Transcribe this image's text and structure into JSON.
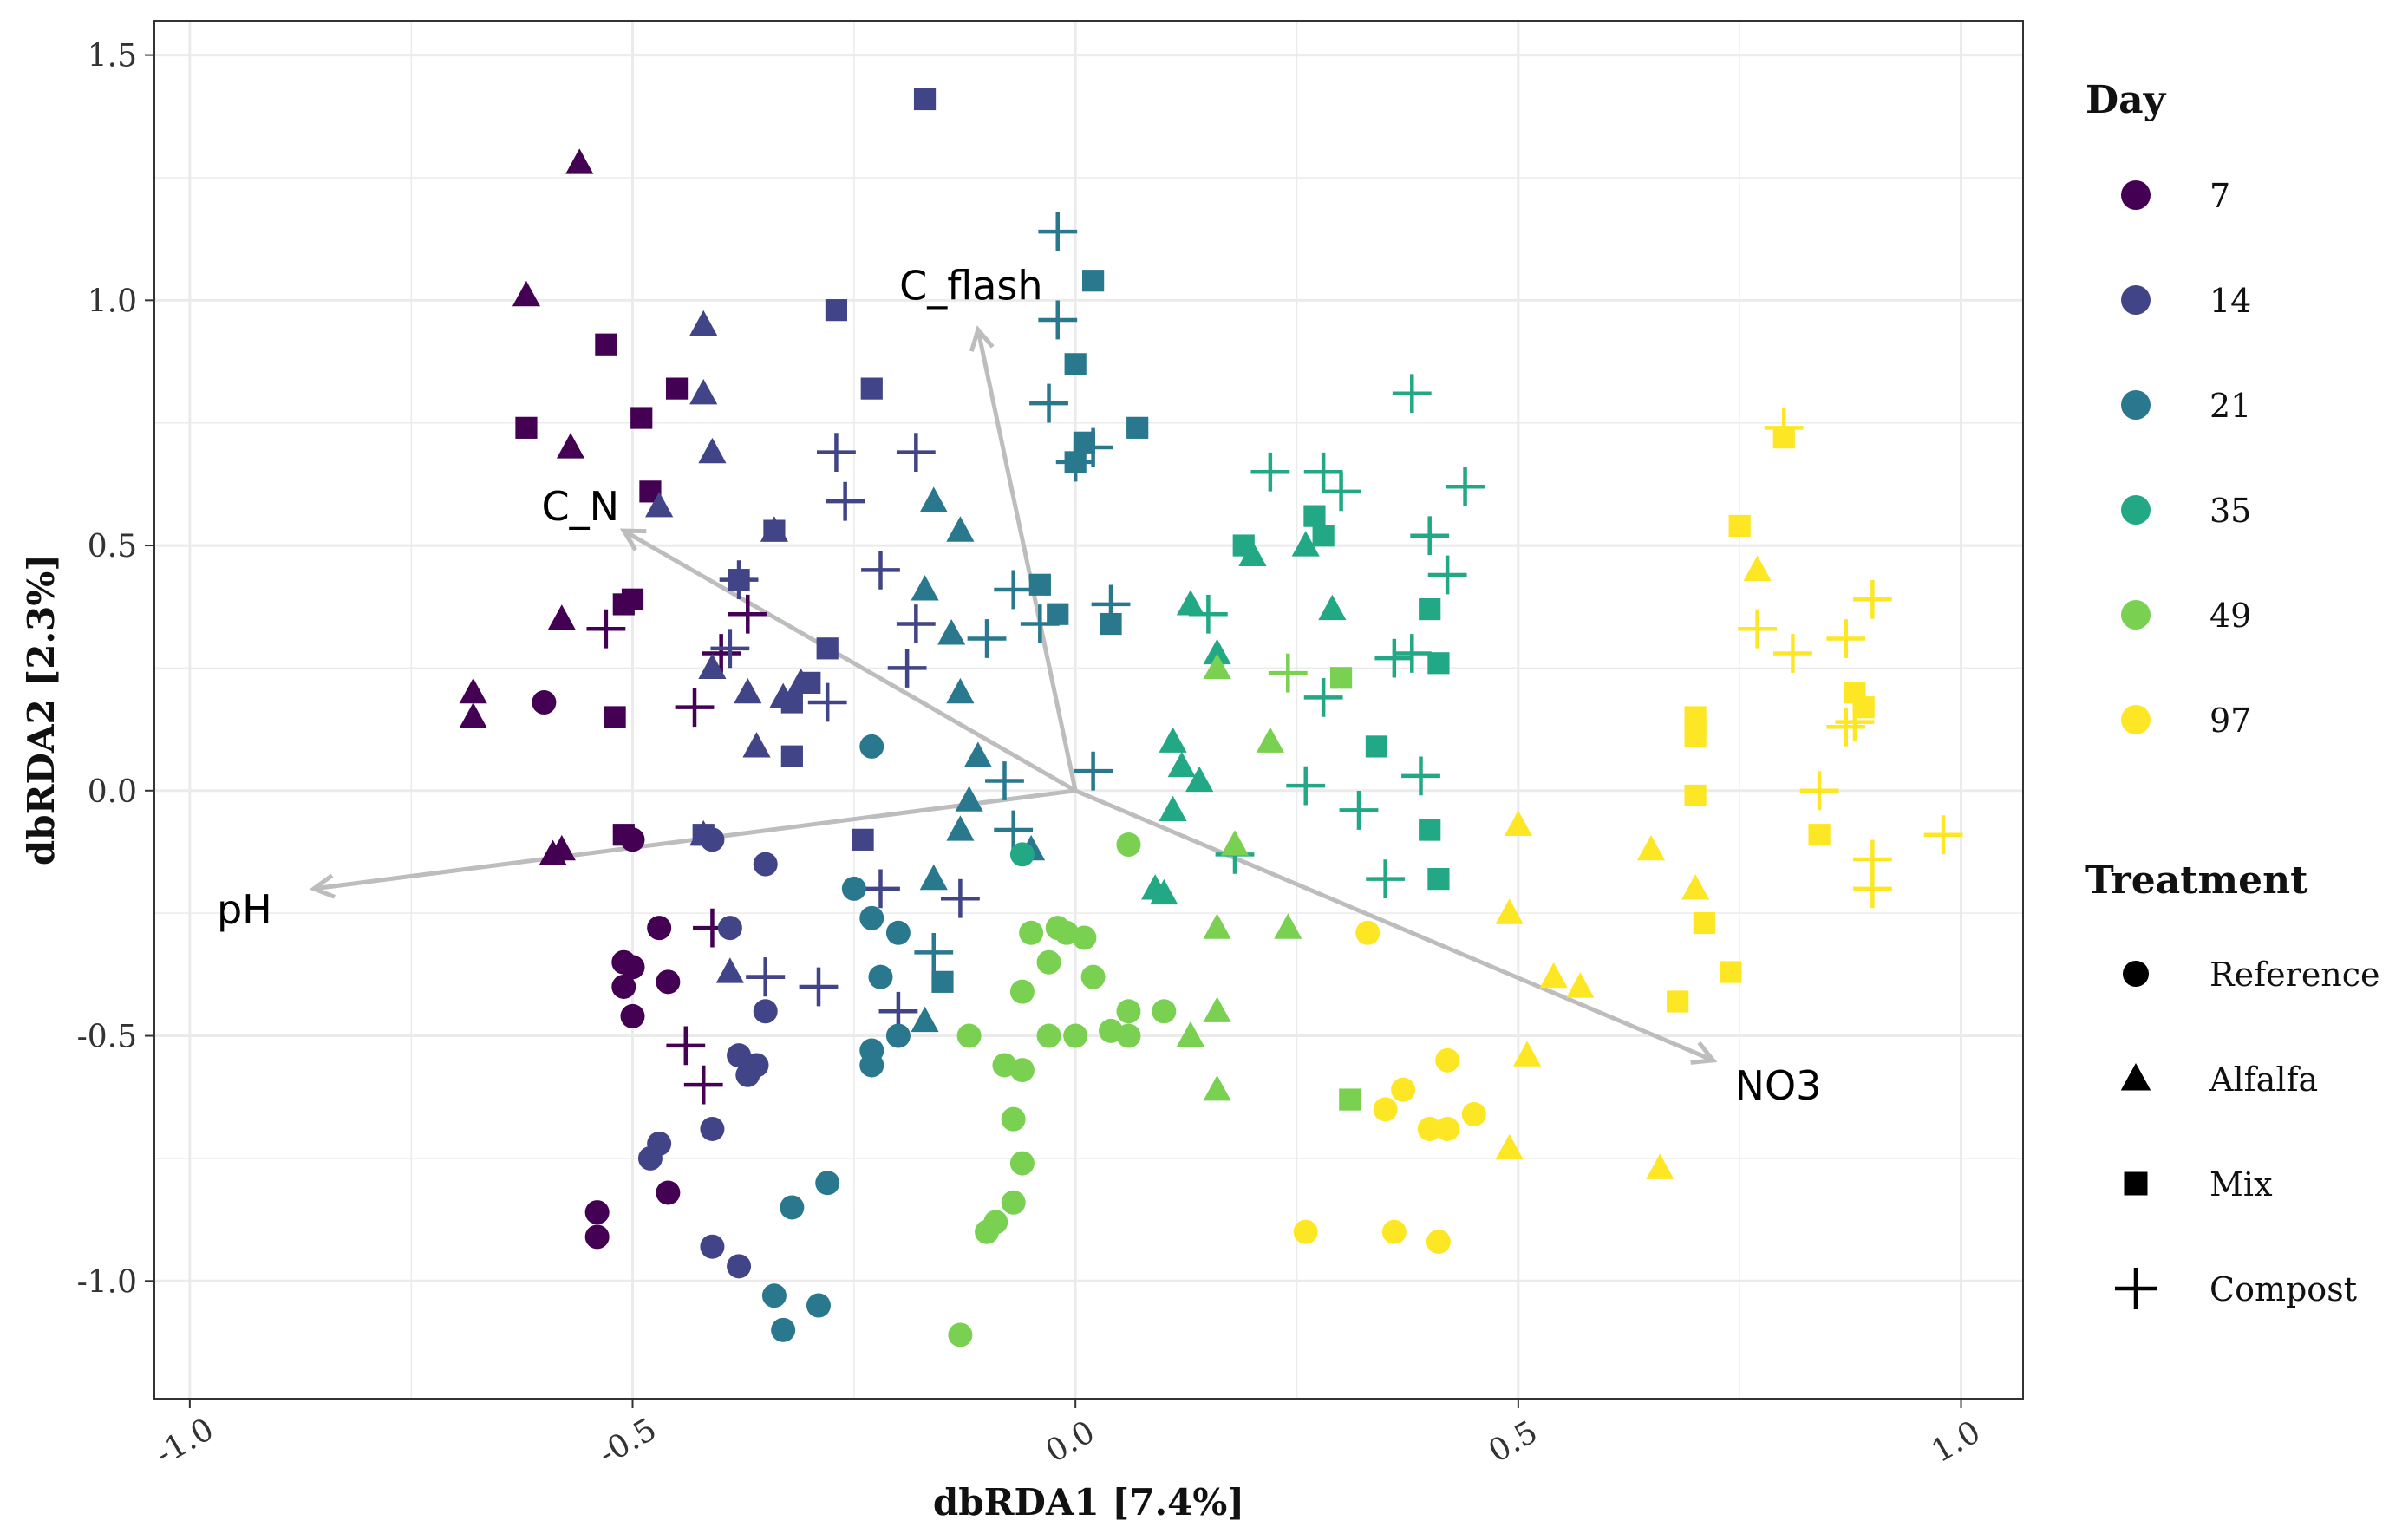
{
  "chart_data": {
    "type": "scatter",
    "xlabel": "dbRDA1   [7.4%]",
    "ylabel": "dbRDA2   [2.3%]",
    "xlim": [
      -1.04,
      1.07
    ],
    "ylim": [
      -1.24,
      1.57
    ],
    "xticks": [
      -1.0,
      -0.5,
      0.0,
      0.5,
      1.0
    ],
    "xtick_labels": [
      "-1.0",
      "-0.5",
      "0.0",
      "0.5",
      "1.0"
    ],
    "yticks": [
      -1.0,
      -0.5,
      0.0,
      0.5,
      1.0,
      1.5
    ],
    "ytick_labels": [
      "-1.0",
      "-0.5",
      "0.0",
      "0.5",
      "1.0",
      "1.5"
    ],
    "grid": true,
    "legend_position": "right",
    "colors": {
      "7": "#440154",
      "14": "#414487",
      "21": "#2a788e",
      "35": "#22a884",
      "49": "#7ad151",
      "97": "#fde725",
      "arrow": "#bdbdbd",
      "grid": "#ebebeb"
    },
    "legend": {
      "day_title": "Day",
      "days": [
        "7",
        "14",
        "21",
        "35",
        "49",
        "97"
      ],
      "treatment_title": "Treatment",
      "treatments": [
        {
          "label": "Reference",
          "shape": "circle"
        },
        {
          "label": "Alfalfa",
          "shape": "triangle"
        },
        {
          "label": "Mix",
          "shape": "square"
        },
        {
          "label": "Compost",
          "shape": "plus"
        }
      ]
    },
    "arrows": [
      {
        "label": "C_flash",
        "x": -0.11,
        "y": 0.94
      },
      {
        "label": "C_N",
        "x": -0.51,
        "y": 0.53
      },
      {
        "label": "pH",
        "x": -0.86,
        "y": -0.2
      },
      {
        "label": "NO3",
        "x": 0.72,
        "y": -0.55
      }
    ],
    "series": [
      {
        "day": "7",
        "shape": "circle",
        "points": [
          [
            -0.6,
            0.18
          ],
          [
            -0.54,
            -0.86
          ],
          [
            -0.54,
            -0.91
          ],
          [
            -0.51,
            -0.35
          ],
          [
            -0.5,
            -0.36
          ],
          [
            -0.5,
            -0.46
          ],
          [
            -0.47,
            -0.28
          ],
          [
            -0.46,
            -0.39
          ],
          [
            -0.46,
            -0.82
          ],
          [
            -0.5,
            -0.1
          ],
          [
            -0.51,
            -0.4
          ]
        ]
      },
      {
        "day": "7",
        "shape": "triangle",
        "points": [
          [
            -0.56,
            1.28
          ],
          [
            -0.62,
            1.01
          ],
          [
            -0.57,
            0.7
          ],
          [
            -0.68,
            0.2
          ],
          [
            -0.68,
            0.15
          ],
          [
            -0.58,
            0.35
          ],
          [
            -0.59,
            -0.13
          ],
          [
            -0.58,
            -0.12
          ]
        ]
      },
      {
        "day": "7",
        "shape": "square",
        "points": [
          [
            -0.53,
            0.91
          ],
          [
            -0.62,
            0.74
          ],
          [
            -0.45,
            0.82
          ],
          [
            -0.49,
            0.76
          ],
          [
            -0.48,
            0.61
          ],
          [
            -0.5,
            0.39
          ],
          [
            -0.51,
            0.38
          ],
          [
            -0.52,
            0.15
          ],
          [
            -0.51,
            -0.09
          ]
        ]
      },
      {
        "day": "7",
        "shape": "plus",
        "points": [
          [
            -0.53,
            0.33
          ],
          [
            -0.43,
            0.17
          ],
          [
            -0.4,
            0.28
          ],
          [
            -0.37,
            0.36
          ],
          [
            -0.41,
            -0.28
          ],
          [
            -0.44,
            -0.52
          ],
          [
            -0.42,
            -0.6
          ],
          [
            -0.35,
            -0.38
          ]
        ]
      },
      {
        "day": "14",
        "shape": "circle",
        "points": [
          [
            -0.39,
            -0.28
          ],
          [
            -0.38,
            -0.54
          ],
          [
            -0.37,
            -0.58
          ],
          [
            -0.36,
            -0.56
          ],
          [
            -0.35,
            -0.45
          ],
          [
            -0.47,
            -0.72
          ],
          [
            -0.41,
            -0.69
          ],
          [
            -0.41,
            -0.93
          ],
          [
            -0.38,
            -0.97
          ],
          [
            -0.41,
            -0.1
          ],
          [
            -0.35,
            -0.15
          ],
          [
            -0.48,
            -0.75
          ]
        ]
      },
      {
        "day": "14",
        "shape": "triangle",
        "points": [
          [
            -0.42,
            0.95
          ],
          [
            -0.42,
            0.81
          ],
          [
            -0.41,
            0.69
          ],
          [
            -0.47,
            0.58
          ],
          [
            -0.34,
            0.53
          ],
          [
            -0.41,
            0.25
          ],
          [
            -0.37,
            0.2
          ],
          [
            -0.36,
            0.09
          ],
          [
            -0.39,
            -0.37
          ],
          [
            -0.42,
            -0.09
          ],
          [
            -0.33,
            0.19
          ],
          [
            -0.31,
            0.22
          ]
        ]
      },
      {
        "day": "14",
        "shape": "square",
        "points": [
          [
            -0.17,
            1.41
          ],
          [
            -0.27,
            0.98
          ],
          [
            -0.23,
            0.82
          ],
          [
            -0.34,
            0.53
          ],
          [
            -0.28,
            0.29
          ],
          [
            -0.3,
            0.22
          ],
          [
            -0.32,
            0.18
          ],
          [
            -0.32,
            0.07
          ],
          [
            -0.38,
            0.43
          ],
          [
            -0.42,
            -0.09
          ],
          [
            -0.24,
            -0.1
          ]
        ]
      },
      {
        "day": "14",
        "shape": "plus",
        "points": [
          [
            -0.27,
            0.69
          ],
          [
            -0.18,
            0.69
          ],
          [
            -0.26,
            0.59
          ],
          [
            -0.22,
            0.45
          ],
          [
            -0.18,
            0.34
          ],
          [
            -0.19,
            0.25
          ],
          [
            -0.28,
            0.18
          ],
          [
            -0.38,
            0.43
          ],
          [
            -0.39,
            0.29
          ],
          [
            -0.13,
            -0.22
          ],
          [
            -0.2,
            -0.45
          ],
          [
            -0.29,
            -0.4
          ],
          [
            -0.35,
            -0.38
          ],
          [
            -0.22,
            -0.2
          ]
        ]
      },
      {
        "day": "21",
        "shape": "circle",
        "points": [
          [
            -0.23,
            0.09
          ],
          [
            -0.25,
            -0.2
          ],
          [
            -0.23,
            -0.26
          ],
          [
            -0.22,
            -0.38
          ],
          [
            -0.23,
            -0.53
          ],
          [
            -0.23,
            -0.56
          ],
          [
            -0.28,
            -0.8
          ],
          [
            -0.32,
            -0.85
          ],
          [
            -0.34,
            -1.03
          ],
          [
            -0.33,
            -1.1
          ],
          [
            -0.29,
            -1.05
          ],
          [
            -0.2,
            -0.29
          ],
          [
            -0.2,
            -0.5
          ]
        ]
      },
      {
        "day": "21",
        "shape": "triangle",
        "points": [
          [
            -0.16,
            0.59
          ],
          [
            -0.13,
            0.53
          ],
          [
            -0.17,
            0.41
          ],
          [
            -0.14,
            0.32
          ],
          [
            -0.13,
            0.2
          ],
          [
            -0.11,
            0.07
          ],
          [
            -0.12,
            -0.02
          ],
          [
            -0.13,
            -0.08
          ],
          [
            -0.16,
            -0.18
          ],
          [
            -0.17,
            -0.47
          ],
          [
            -0.05,
            -0.12
          ]
        ]
      },
      {
        "day": "21",
        "shape": "square",
        "points": [
          [
            0.02,
            1.04
          ],
          [
            0.0,
            0.87
          ],
          [
            0.01,
            0.71
          ],
          [
            0.0,
            0.67
          ],
          [
            0.07,
            0.74
          ],
          [
            -0.04,
            0.42
          ],
          [
            -0.02,
            0.36
          ],
          [
            0.04,
            0.34
          ],
          [
            -0.15,
            -0.39
          ]
        ]
      },
      {
        "day": "21",
        "shape": "plus",
        "points": [
          [
            -0.02,
            1.14
          ],
          [
            -0.02,
            0.96
          ],
          [
            -0.03,
            0.79
          ],
          [
            0.02,
            0.7
          ],
          [
            0.0,
            0.67
          ],
          [
            -0.07,
            0.41
          ],
          [
            -0.1,
            0.31
          ],
          [
            -0.08,
            0.02
          ],
          [
            0.04,
            0.38
          ],
          [
            0.02,
            0.04
          ],
          [
            -0.16,
            -0.33
          ],
          [
            -0.04,
            0.34
          ],
          [
            -0.07,
            -0.08
          ]
        ]
      },
      {
        "day": "35",
        "shape": "circle",
        "points": [
          [
            -0.06,
            -0.13
          ]
        ]
      },
      {
        "day": "35",
        "shape": "triangle",
        "points": [
          [
            0.11,
            0.1
          ],
          [
            0.12,
            0.05
          ],
          [
            0.11,
            -0.04
          ],
          [
            0.13,
            0.38
          ],
          [
            0.16,
            0.28
          ],
          [
            0.2,
            0.48
          ],
          [
            0.26,
            0.5
          ],
          [
            0.29,
            0.37
          ],
          [
            0.09,
            -0.2
          ],
          [
            0.1,
            -0.21
          ],
          [
            0.14,
            0.02
          ]
        ]
      },
      {
        "day": "35",
        "shape": "square",
        "points": [
          [
            0.19,
            0.5
          ],
          [
            0.27,
            0.56
          ],
          [
            0.28,
            0.52
          ],
          [
            0.34,
            0.09
          ],
          [
            0.4,
            0.37
          ],
          [
            0.41,
            0.26
          ],
          [
            0.4,
            -0.08
          ],
          [
            0.41,
            -0.18
          ]
        ]
      },
      {
        "day": "35",
        "shape": "plus",
        "points": [
          [
            0.38,
            0.81
          ],
          [
            0.22,
            0.65
          ],
          [
            0.28,
            0.65
          ],
          [
            0.3,
            0.61
          ],
          [
            0.44,
            0.62
          ],
          [
            0.4,
            0.52
          ],
          [
            0.42,
            0.44
          ],
          [
            0.15,
            0.36
          ],
          [
            0.28,
            0.19
          ],
          [
            0.36,
            0.27
          ],
          [
            0.38,
            0.28
          ],
          [
            0.39,
            0.03
          ],
          [
            0.32,
            -0.04
          ],
          [
            0.35,
            -0.18
          ],
          [
            0.18,
            -0.13
          ],
          [
            0.26,
            0.01
          ]
        ]
      },
      {
        "day": "49",
        "shape": "circle",
        "points": [
          [
            0.06,
            -0.11
          ],
          [
            -0.05,
            -0.29
          ],
          [
            -0.02,
            -0.28
          ],
          [
            -0.01,
            -0.29
          ],
          [
            0.01,
            -0.3
          ],
          [
            -0.06,
            -0.41
          ],
          [
            -0.03,
            -0.35
          ],
          [
            0.02,
            -0.38
          ],
          [
            0.06,
            -0.45
          ],
          [
            0.1,
            -0.45
          ],
          [
            -0.06,
            -0.57
          ],
          [
            -0.07,
            -0.67
          ],
          [
            -0.06,
            -0.76
          ],
          [
            -0.07,
            -0.84
          ],
          [
            -0.09,
            -0.88
          ],
          [
            -0.1,
            -0.9
          ],
          [
            -0.13,
            -1.11
          ],
          [
            -0.03,
            -0.5
          ],
          [
            0.0,
            -0.5
          ],
          [
            0.04,
            -0.49
          ],
          [
            0.06,
            -0.5
          ],
          [
            -0.12,
            -0.5
          ],
          [
            -0.08,
            -0.56
          ]
        ]
      },
      {
        "day": "49",
        "shape": "triangle",
        "points": [
          [
            0.16,
            0.25
          ],
          [
            0.22,
            0.1
          ],
          [
            0.18,
            -0.11
          ],
          [
            0.16,
            -0.45
          ],
          [
            0.13,
            -0.5
          ],
          [
            0.16,
            -0.61
          ],
          [
            0.24,
            -0.28
          ],
          [
            0.16,
            -0.28
          ]
        ]
      },
      {
        "day": "49",
        "shape": "square",
        "points": [
          [
            0.3,
            0.23
          ],
          [
            0.31,
            -0.63
          ]
        ]
      },
      {
        "day": "49",
        "shape": "plus",
        "points": [
          [
            0.24,
            0.24
          ]
        ]
      },
      {
        "day": "97",
        "shape": "circle",
        "points": [
          [
            0.33,
            -0.29
          ],
          [
            0.42,
            -0.55
          ],
          [
            0.37,
            -0.61
          ],
          [
            0.35,
            -0.65
          ],
          [
            0.4,
            -0.69
          ],
          [
            0.42,
            -0.69
          ],
          [
            0.45,
            -0.66
          ],
          [
            0.26,
            -0.9
          ],
          [
            0.36,
            -0.9
          ],
          [
            0.41,
            -0.92
          ]
        ]
      },
      {
        "day": "97",
        "shape": "triangle",
        "points": [
          [
            0.77,
            0.45
          ],
          [
            0.5,
            -0.07
          ],
          [
            0.49,
            -0.25
          ],
          [
            0.51,
            -0.54
          ],
          [
            0.54,
            -0.38
          ],
          [
            0.57,
            -0.4
          ],
          [
            0.49,
            -0.73
          ],
          [
            0.65,
            -0.12
          ],
          [
            0.7,
            -0.2
          ],
          [
            0.66,
            -0.77
          ]
        ]
      },
      {
        "day": "97",
        "shape": "square",
        "points": [
          [
            0.8,
            0.72
          ],
          [
            0.75,
            0.54
          ],
          [
            0.7,
            0.15
          ],
          [
            0.7,
            0.13
          ],
          [
            0.7,
            0.11
          ],
          [
            0.7,
            -0.01
          ],
          [
            0.71,
            -0.27
          ],
          [
            0.74,
            -0.37
          ],
          [
            0.68,
            -0.43
          ],
          [
            0.84,
            -0.09
          ],
          [
            0.88,
            0.2
          ],
          [
            0.89,
            0.17
          ]
        ]
      },
      {
        "day": "97",
        "shape": "plus",
        "points": [
          [
            0.8,
            0.74
          ],
          [
            0.77,
            0.33
          ],
          [
            0.81,
            0.28
          ],
          [
            0.87,
            0.31
          ],
          [
            0.9,
            0.39
          ],
          [
            0.87,
            0.13
          ],
          [
            0.88,
            0.14
          ],
          [
            0.84,
            0.0
          ],
          [
            0.9,
            -0.14
          ],
          [
            0.9,
            -0.2
          ],
          [
            0.98,
            -0.09
          ]
        ]
      }
    ]
  }
}
